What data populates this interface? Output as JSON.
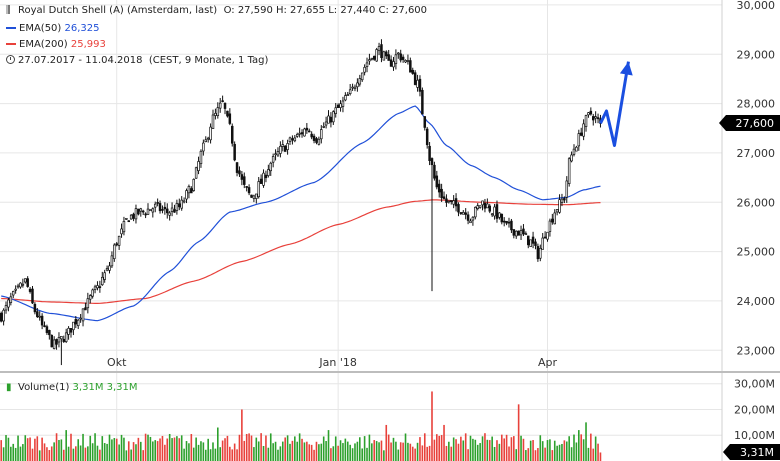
{
  "header": {
    "title": "Royal Dutch Shell (A) (Amsterdam, last)",
    "ohlc": "O: 27,590  H: 27,655  L: 27,440  C: 27,600",
    "ema50_label": "EMA(50)",
    "ema50_value": "26,325",
    "ema200_label": "EMA(200)",
    "ema200_value": "25,993",
    "range": "27.07.2017 - 11.04.2018",
    "range_detail": "(CEST, 9 Monate, 1 Tag)"
  },
  "volume_legend": {
    "label": "Volume(1)",
    "value1": "3,31M",
    "value2": "3,31M"
  },
  "price_badge": "27,600",
  "volume_badge": "3,31M",
  "colors": {
    "up": "#2ca02c",
    "down": "#e8413b",
    "ema50": "#2050d8",
    "ema200": "#e8413b",
    "arrow": "#1b4fe0",
    "grid": "#e6e6e6",
    "separator": "#d0d0d0"
  },
  "chart_data": [
    {
      "type": "candlestick",
      "title": "Royal Dutch Shell (A) (Amsterdam, last)",
      "x_ticks": [
        "Okt",
        "Jan '18",
        "Apr"
      ],
      "x_tick_positions": [
        48,
        140,
        227
      ],
      "ylim": [
        22.6,
        30.1
      ],
      "y_ticks": [
        "23,000",
        "24,000",
        "25,000",
        "26,000",
        "27,000",
        "28,000",
        "29,000",
        "30,000"
      ],
      "y_tick_values": [
        23,
        24,
        25,
        26,
        27,
        28,
        29,
        30
      ],
      "n_bars": 250,
      "close_anchors": [
        [
          0,
          23.7
        ],
        [
          5,
          24.1
        ],
        [
          10,
          24.4
        ],
        [
          14,
          23.8
        ],
        [
          18,
          23.4
        ],
        [
          22,
          23.1
        ],
        [
          27,
          23.3
        ],
        [
          31,
          23.6
        ],
        [
          35,
          23.9
        ],
        [
          39,
          24.2
        ],
        [
          44,
          24.6
        ],
        [
          48,
          25.2
        ],
        [
          53,
          25.7
        ],
        [
          58,
          25.8
        ],
        [
          64,
          25.9
        ],
        [
          69,
          25.8
        ],
        [
          74,
          25.9
        ],
        [
          79,
          26.3
        ],
        [
          84,
          27.1
        ],
        [
          88,
          27.7
        ],
        [
          92,
          28.0
        ],
        [
          95,
          27.5
        ],
        [
          98,
          26.7
        ],
        [
          101,
          26.3
        ],
        [
          104,
          26.1
        ],
        [
          108,
          26.4
        ],
        [
          112,
          26.8
        ],
        [
          117,
          27.1
        ],
        [
          122,
          27.3
        ],
        [
          127,
          27.5
        ],
        [
          131,
          27.3
        ],
        [
          135,
          27.6
        ],
        [
          140,
          27.9
        ],
        [
          145,
          28.2
        ],
        [
          149,
          28.6
        ],
        [
          153,
          28.9
        ],
        [
          157,
          29.1
        ],
        [
          161,
          28.8
        ],
        [
          165,
          29.0
        ],
        [
          169,
          28.8
        ],
        [
          173,
          28.4
        ],
        [
          176,
          27.6
        ],
        [
          178,
          26.9
        ],
        [
          181,
          26.3
        ],
        [
          185,
          26.0
        ],
        [
          190,
          25.9
        ],
        [
          195,
          25.7
        ],
        [
          200,
          26.0
        ],
        [
          205,
          25.8
        ],
        [
          210,
          25.5
        ],
        [
          215,
          25.4
        ],
        [
          220,
          25.2
        ],
        [
          223,
          24.95
        ],
        [
          227,
          25.5
        ],
        [
          231,
          25.9
        ],
        [
          234,
          26.1
        ],
        [
          236,
          26.8
        ],
        [
          238,
          27.1
        ],
        [
          240,
          27.3
        ],
        [
          242,
          27.6
        ],
        [
          245,
          27.8
        ],
        [
          249,
          27.6
        ]
      ],
      "spikes": [
        {
          "bar": 179,
          "low": 24.2
        },
        {
          "bar": 25,
          "low": 22.7
        }
      ],
      "series": [
        {
          "name": "EMA(50)",
          "anchors": [
            [
              0,
              24.1
            ],
            [
              20,
              23.75
            ],
            [
              40,
              23.6
            ],
            [
              55,
              23.9
            ],
            [
              70,
              24.6
            ],
            [
              82,
              25.2
            ],
            [
              95,
              25.8
            ],
            [
              110,
              26.0
            ],
            [
              130,
              26.4
            ],
            [
              150,
              27.2
            ],
            [
              165,
              27.8
            ],
            [
              172,
              27.95
            ],
            [
              178,
              27.6
            ],
            [
              185,
              27.15
            ],
            [
              195,
              26.75
            ],
            [
              205,
              26.5
            ],
            [
              215,
              26.25
            ],
            [
              225,
              26.05
            ],
            [
              235,
              26.1
            ],
            [
              242,
              26.25
            ],
            [
              249,
              26.325
            ]
          ]
        },
        {
          "name": "EMA(200)",
          "anchors": [
            [
              0,
              24.05
            ],
            [
              20,
              23.98
            ],
            [
              40,
              23.95
            ],
            [
              60,
              24.05
            ],
            [
              80,
              24.4
            ],
            [
              100,
              24.8
            ],
            [
              120,
              25.15
            ],
            [
              140,
              25.55
            ],
            [
              160,
              25.9
            ],
            [
              172,
              26.02
            ],
            [
              180,
              26.05
            ],
            [
              200,
              26.0
            ],
            [
              220,
              25.96
            ],
            [
              235,
              25.95
            ],
            [
              249,
              25.993
            ]
          ]
        }
      ],
      "last_close": 27.6,
      "forecast_arrow_y": [
        27.6,
        27.85,
        27.15,
        28.85
      ]
    },
    {
      "type": "bar",
      "title": "Volume(1)",
      "ylim": [
        0,
        33
      ],
      "y_ticks": [
        "10,00M",
        "20,00M",
        "30,00M"
      ],
      "y_tick_values": [
        10,
        20,
        30
      ],
      "unit": "M",
      "base_level": 7.5,
      "spikes": [
        [
          179,
          27
        ],
        [
          215,
          22
        ],
        [
          100,
          20
        ],
        [
          160,
          14
        ],
        [
          184,
          14
        ],
        [
          243,
          15
        ],
        [
          240,
          12
        ],
        [
          27,
          12
        ],
        [
          90,
          13
        ],
        [
          136,
          12
        ]
      ],
      "last_value": 3.31
    }
  ]
}
